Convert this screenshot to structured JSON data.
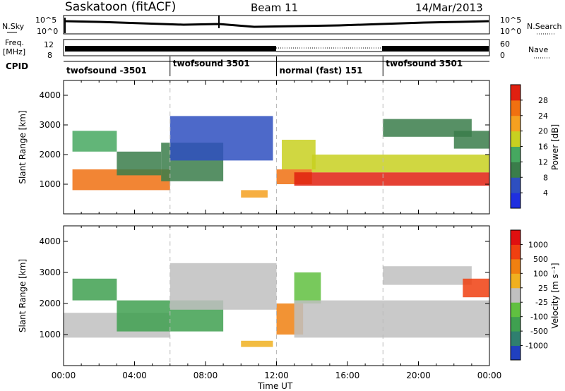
{
  "header": {
    "station": "Saskatoon (fitACF)",
    "beam": "Beam 11",
    "date": "14/Mar/2013"
  },
  "noise_panel": {
    "left_label": "N.Sky",
    "left_ticks": [
      "10^5",
      "10^0"
    ],
    "right_ticks": [
      "10^5",
      "10^0"
    ],
    "right_label": "N.Search"
  },
  "freq_panel": {
    "left_label_1": "Freq.",
    "left_label_2": "[MHz]",
    "left_ticks": [
      "12",
      "8"
    ],
    "right_ticks": [
      "60",
      "0"
    ],
    "right_label": "Nave"
  },
  "cpid": {
    "label": "CPID",
    "segments": [
      {
        "text": "twofsound -3501",
        "start": 0,
        "end": 6
      },
      {
        "text": "twofsound 3501",
        "start": 6,
        "end": 12
      },
      {
        "text": "normal (fast) 151",
        "start": 12,
        "end": 18
      },
      {
        "text": "twofsound 3501",
        "start": 18,
        "end": 24
      }
    ]
  },
  "x_axis": {
    "label": "Time UT",
    "ticks": [
      "00:00",
      "04:00",
      "08:00",
      "12:00",
      "16:00",
      "20:00",
      "00:00"
    ]
  },
  "chart_data": [
    {
      "type": "heatmap",
      "title": "",
      "xlabel": "Time UT",
      "ylabel": "Slant Range [km]",
      "xlim": [
        0,
        24
      ],
      "ylim": [
        0,
        4500
      ],
      "yticks": [
        "1000",
        "2000",
        "3000",
        "4000"
      ],
      "colorbar": {
        "label": "Power [dB]",
        "ticks": [
          "4",
          "8",
          "12",
          "16",
          "20",
          "24",
          "28"
        ],
        "colors": [
          "#1f2fe0",
          "#2e4fc0",
          "#3a7d4a",
          "#46a860",
          "#c8d020",
          "#f5a020",
          "#f07010",
          "#e02010"
        ]
      },
      "regions": [
        {
          "t0": 0.5,
          "t1": 6.0,
          "r0": 800,
          "r1": 1500,
          "level": 6
        },
        {
          "t0": 0.5,
          "t1": 3.0,
          "r0": 2100,
          "r1": 2800,
          "level": 3
        },
        {
          "t0": 3.0,
          "t1": 5.5,
          "r0": 1300,
          "r1": 2100,
          "level": 2
        },
        {
          "t0": 5.5,
          "t1": 9.0,
          "r0": 1100,
          "r1": 2400,
          "level": 2
        },
        {
          "t0": 6.0,
          "t1": 11.8,
          "r0": 1800,
          "r1": 3300,
          "level": 1
        },
        {
          "t0": 10.0,
          "t1": 11.5,
          "r0": 550,
          "r1": 800,
          "level": 5
        },
        {
          "t0": 12.0,
          "t1": 14.0,
          "r0": 1000,
          "r1": 1500,
          "level": 6
        },
        {
          "t0": 12.3,
          "t1": 14.2,
          "r0": 1500,
          "r1": 2500,
          "level": 4
        },
        {
          "t0": 13.0,
          "t1": 24.0,
          "r0": 950,
          "r1": 1400,
          "level": 7
        },
        {
          "t0": 14.0,
          "t1": 24.0,
          "r0": 1400,
          "r1": 2000,
          "level": 4
        },
        {
          "t0": 18.0,
          "t1": 23.0,
          "r0": 2600,
          "r1": 3200,
          "level": 2
        },
        {
          "t0": 22.0,
          "t1": 24.0,
          "r0": 2200,
          "r1": 2800,
          "level": 2
        }
      ]
    },
    {
      "type": "heatmap",
      "title": "",
      "xlabel": "Time UT",
      "ylabel": "Slant Range [km]",
      "xlim": [
        0,
        24
      ],
      "ylim": [
        0,
        4500
      ],
      "yticks": [
        "1000",
        "2000",
        "3000",
        "4000"
      ],
      "colorbar": {
        "label": "Velocity [m s⁻¹]",
        "ticks": [
          "1000",
          "500",
          "100",
          "25",
          "-25",
          "-100",
          "-500",
          "-1000"
        ],
        "colors": [
          "#2040c0",
          "#2f7f6f",
          "#3fa050",
          "#60c040",
          "#c0c0c0",
          "#f0b020",
          "#f08010",
          "#f04010",
          "#e01010"
        ]
      },
      "regions": [
        {
          "t0": 0.0,
          "t1": 6.0,
          "r0": 900,
          "r1": 1700,
          "level": 4
        },
        {
          "t0": 0.5,
          "t1": 3.0,
          "r0": 2100,
          "r1": 2800,
          "level": 2
        },
        {
          "t0": 3.0,
          "t1": 9.0,
          "r0": 1100,
          "r1": 2100,
          "level": 2
        },
        {
          "t0": 6.0,
          "t1": 12.0,
          "r0": 1800,
          "r1": 3300,
          "level": 4
        },
        {
          "t0": 10.0,
          "t1": 11.8,
          "r0": 600,
          "r1": 800,
          "level": 5
        },
        {
          "t0": 12.0,
          "t1": 13.5,
          "r0": 1000,
          "r1": 2000,
          "level": 6
        },
        {
          "t0": 13.0,
          "t1": 14.5,
          "r0": 2000,
          "r1": 3000,
          "level": 3
        },
        {
          "t0": 13.0,
          "t1": 24.0,
          "r0": 900,
          "r1": 2100,
          "level": 4
        },
        {
          "t0": 18.0,
          "t1": 23.0,
          "r0": 2600,
          "r1": 3200,
          "level": 4
        },
        {
          "t0": 22.5,
          "t1": 24.0,
          "r0": 2200,
          "r1": 2800,
          "level": 7
        }
      ]
    }
  ]
}
